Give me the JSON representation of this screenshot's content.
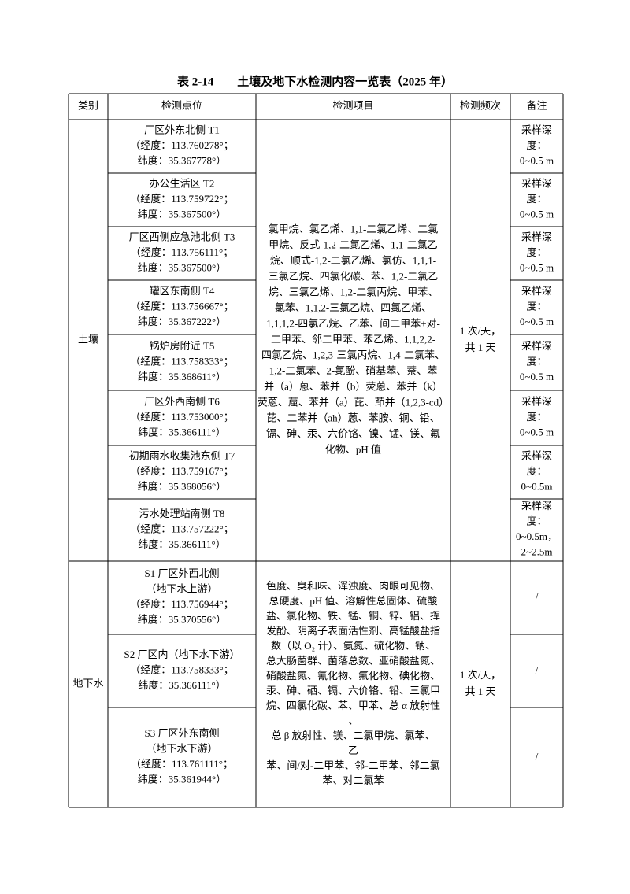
{
  "title": "表 2-14　　土壤及地下水检测内容一览表（2025 年）",
  "header": [
    "类别",
    "检测点位",
    "检测项目",
    "检测频次",
    "备注"
  ],
  "groups": [
    {
      "category": "土壤",
      "items": [
        "氯甲烷、氯乙烯、1,1-二氯乙烯、二氯",
        "甲烷、反式-1,2-二氯乙烯、1,1-二氯乙",
        "烷、顺式-1,2-二氯乙烯、氯仿、1,1,1-",
        "三氯乙烷、四氯化碳、苯、1,2-二氯乙",
        "烷、三氯乙烯、1,2-二氯丙烷、甲苯、",
        "氯苯、1,1,2-三氯乙烷、四氯乙烯、",
        "1,1,1,2-四氯乙烷、乙苯、间二甲苯+对-",
        "二甲苯、邻二甲苯、苯乙烯、1,1,2,2-",
        "四氯乙烷、1,2,3-三氯丙烷、1,4-二氯苯、",
        "1,2-二氯苯、2-氯酚、硝基苯、萘、苯",
        "并（a）蒽、苯并（b）荧蒽、苯并（k）",
        "荧蒽、䓛、苯并（a）芘、茚并（1,2,3-cd）",
        "芘、二苯并（ah）蒽、苯胺、铜、铅、",
        "镉、砷、汞、六价铬、镍、锰、镁、氟",
        "化物、pH 值"
      ],
      "frequency": [
        "1 次/天，",
        "共 1 天"
      ],
      "points": [
        {
          "location": [
            "厂区外东北侧 T1",
            "（经度：113.760278°；",
            "纬度：35.367778°）"
          ],
          "remark": [
            "采样深",
            "度：",
            "0~0.5 m"
          ]
        },
        {
          "location": [
            "办公生活区 T2",
            "（经度：113.759722°；",
            "纬度：35.367500°）"
          ],
          "remark": [
            "采样深",
            "度：",
            "0~0.5 m"
          ]
        },
        {
          "location": [
            "厂区西侧应急池北侧 T3",
            "（经度：113.756111°；",
            "纬度：35.367500°）"
          ],
          "remark": [
            "采样深",
            "度：",
            "0~0.5 m"
          ]
        },
        {
          "location": [
            "罐区东南侧 T4",
            "（经度：113.756667°；",
            "纬度：35.367222°）"
          ],
          "remark": [
            "采样深",
            "度：",
            "0~0.5 m"
          ]
        },
        {
          "location": [
            "锅炉房附近 T5",
            "（经度：113.758333°；",
            "纬度：35.368611°）"
          ],
          "remark": [
            "采样深",
            "度：",
            "0~0.5 m"
          ]
        },
        {
          "location": [
            "厂区外西南侧 T6",
            "（经度：113.753000°；",
            "纬度：35.366111°）"
          ],
          "remark": [
            "采样深",
            "度：",
            "0~0.5 m"
          ]
        },
        {
          "location": [
            "初期雨水收集池东侧 T7",
            "（经度：113.759167°；",
            "纬度：35.368056°）"
          ],
          "remark": [
            "采样深",
            "度：",
            "0~0.5m"
          ]
        },
        {
          "location": [
            "污水处理站南侧 T8",
            "（经度：113.757222°；",
            "纬度：35.366111°）"
          ],
          "remark": [
            "采样深",
            "度：",
            "0~0.5m，",
            "2~2.5m"
          ]
        }
      ]
    },
    {
      "category": "地下水",
      "items": [
        "色度、臭和味、浑浊度、肉眼可见物、",
        "总硬度、pH 值、溶解性总固体、硫酸",
        "盐、氯化物、铁、锰、铜、锌、铝、挥",
        "发酚、阴离子表面活性剂、高锰酸盐指",
        "数（以 O₂ 计）、氨氮、硫化物、钠、",
        "总大肠菌群、菌落总数、亚硝酸盐氮、",
        "硝酸盐氮、氰化物、氟化物、碘化物、",
        "汞、砷、硒、镉、六价铬、铅、三氯甲",
        "烷、四氯化碳、苯、甲苯、总 α 放射性",
        "、",
        "总 β 放射性、镁、二氯甲烷、氯苯、",
        "乙",
        "苯、间/对-二甲苯、邻-二甲苯、邻二氯",
        "苯、对二氯苯"
      ],
      "frequency": [
        "1 次/天，",
        "共 1 天"
      ],
      "points": [
        {
          "location": [
            "S1 厂区外西北侧",
            "（地下水上游）",
            "（经度：113.756944°；",
            "纬度：35.370556°）"
          ],
          "remark": [
            "/"
          ]
        },
        {
          "location": [
            "S2 厂区内（地下水下游）",
            "（经度：113.758333°；",
            "纬度：35.366111°）"
          ],
          "remark": [
            "/"
          ]
        },
        {
          "location": [
            "S3 厂区外东南侧",
            "（地下水下游）",
            "（经度：113.761111°；",
            "纬度：35.361944°）"
          ],
          "remark": [
            "/"
          ]
        }
      ]
    }
  ]
}
